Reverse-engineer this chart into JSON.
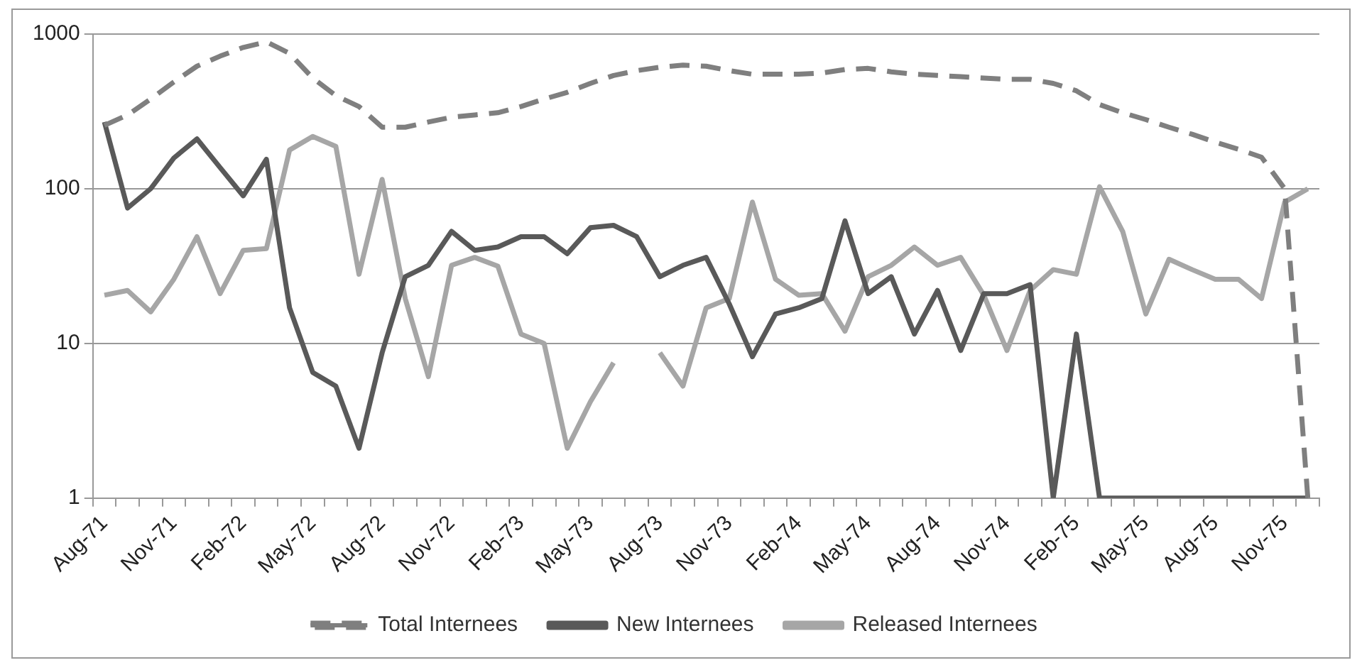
{
  "chart_data": {
    "type": "line",
    "categories": [
      "Aug-71",
      null,
      null,
      "Nov-71",
      null,
      null,
      "Feb-72",
      null,
      null,
      "May-72",
      null,
      null,
      "Aug-72",
      null,
      null,
      "Nov-72",
      null,
      null,
      "Feb-73",
      null,
      null,
      "May-73",
      null,
      null,
      "Aug-73",
      null,
      null,
      "Nov-73",
      null,
      null,
      "Feb-74",
      null,
      null,
      "May-74",
      null,
      null,
      "Aug-74",
      null,
      null,
      "Nov-74",
      null,
      null,
      "Feb-75",
      null,
      null,
      "May-75",
      null,
      null,
      "Aug-75",
      null,
      null,
      "Nov-75",
      null
    ],
    "series": [
      {
        "name": "Total Internees",
        "color": "#7f7f7f",
        "line_style": "dashed",
        "values": [
          257,
          300,
          380,
          490,
          620,
          720,
          820,
          890,
          750,
          520,
          400,
          340,
          250,
          250,
          270,
          290,
          300,
          310,
          340,
          380,
          420,
          480,
          540,
          580,
          610,
          630,
          620,
          580,
          550,
          550,
          550,
          560,
          590,
          600,
          570,
          550,
          540,
          530,
          520,
          510,
          510,
          480,
          430,
          350,
          310,
          280,
          250,
          225,
          200,
          180,
          160,
          100,
          1
        ]
      },
      {
        "name": "New Internees",
        "color": "#595959",
        "line_style": "solid",
        "values": [
          270,
          75,
          100,
          158,
          210,
          137,
          90,
          155,
          17,
          6.5,
          5.3,
          2.1,
          8.7,
          27,
          32,
          53,
          40,
          42,
          49,
          49,
          38,
          56,
          58,
          49,
          27,
          32,
          36,
          18,
          8.2,
          15.5,
          17,
          19.5,
          62,
          21,
          27,
          11.5,
          22,
          9,
          21,
          21,
          24,
          1,
          11.5,
          1,
          1,
          1,
          1,
          1,
          1,
          1,
          1,
          1,
          1
        ]
      },
      {
        "name": "Released Internees",
        "color": "#a6a6a6",
        "line_style": "solid",
        "values": [
          20.5,
          22,
          16,
          26,
          49,
          21,
          40,
          41,
          178,
          218,
          188,
          28,
          115,
          19.5,
          6.1,
          32,
          36,
          31.6,
          11.5,
          10,
          2.1,
          4.2,
          7.5,
          null,
          8.7,
          5.3,
          17,
          19.5,
          82,
          26,
          20.5,
          21,
          12,
          27,
          32,
          42,
          32,
          36,
          20.5,
          9,
          22,
          30,
          28,
          103,
          53,
          15.5,
          35,
          30,
          26,
          26,
          19.5,
          82,
          100
        ]
      }
    ],
    "log": "y",
    "ylim": [
      1,
      1000
    ],
    "yticks": [
      1,
      10,
      100,
      1000
    ],
    "grid": "y",
    "legend": "bottom",
    "marker": "none"
  }
}
